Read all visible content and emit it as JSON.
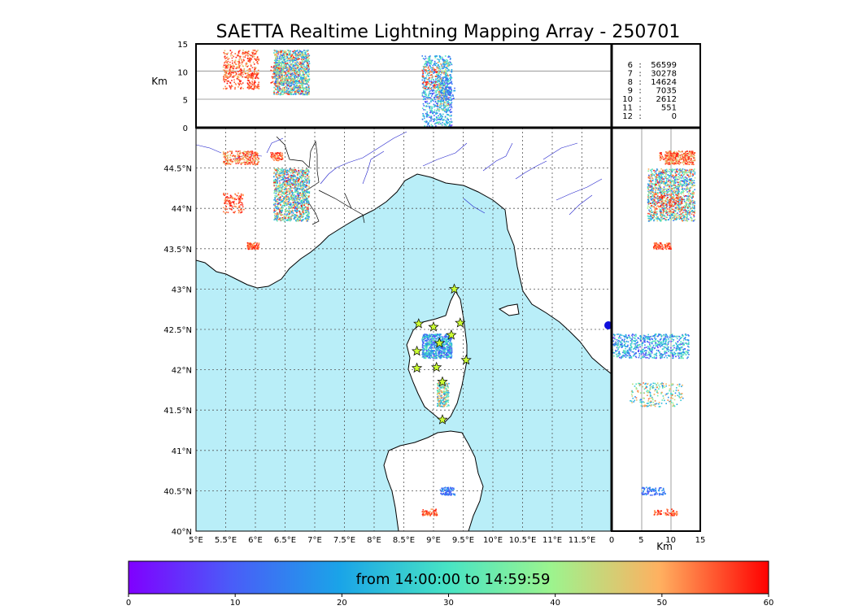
{
  "chart_data": {
    "type": "scatter",
    "title": "SAETTA Realtime Lightning Mapping Array - 250701",
    "map": {
      "lon_range": [
        5.0,
        12.0
      ],
      "lat_range": [
        40.0,
        45.0
      ],
      "lon_ticks": [
        "5°E",
        "5.5°E",
        "6°E",
        "6.5°E",
        "7°E",
        "7.5°E",
        "8°E",
        "8.5°E",
        "9°E",
        "9.5°E",
        "10°E",
        "10.5°E",
        "11°E",
        "11.5°E"
      ],
      "lat_ticks": [
        "40°N",
        "40.5°N",
        "41°N",
        "41.5°N",
        "42°N",
        "42.5°N",
        "43°N",
        "43.5°N",
        "44°N",
        "44.5°N"
      ],
      "grid": true,
      "sea_color": "#b9eef8",
      "land_color": "#ffffff",
      "coast_color": "#000000",
      "border_color": "#000000",
      "river_color": "#2222cc"
    },
    "altitude_axes": {
      "top_label": "Km",
      "side_label": "Km",
      "range": [
        0,
        15
      ],
      "ticks": [
        "0",
        "5",
        "10",
        "15"
      ],
      "reference_lines": [
        5,
        10
      ]
    },
    "stations": [
      [
        9.35,
        43.0
      ],
      [
        8.75,
        42.57
      ],
      [
        9.0,
        42.53
      ],
      [
        9.45,
        42.58
      ],
      [
        9.1,
        42.33
      ],
      [
        9.3,
        42.43
      ],
      [
        8.72,
        42.23
      ],
      [
        8.72,
        42.02
      ],
      [
        9.05,
        42.03
      ],
      [
        9.55,
        42.12
      ],
      [
        9.15,
        41.85
      ],
      [
        9.15,
        41.38
      ]
    ],
    "station_color": "#ccff33",
    "clusters": [
      {
        "lon": [
          5.45,
          6.05
        ],
        "lat": [
          44.55,
          44.72
        ],
        "alt": [
          9,
          14
        ],
        "time": [
          45,
          60
        ],
        "n": 260
      },
      {
        "lon": [
          6.25,
          6.45
        ],
        "lat": [
          44.6,
          44.7
        ],
        "alt": [
          8,
          11
        ],
        "time": [
          48,
          60
        ],
        "n": 70
      },
      {
        "lon": [
          6.3,
          6.9
        ],
        "lat": [
          43.85,
          44.5
        ],
        "alt": [
          6,
          14
        ],
        "time": [
          8,
          60
        ],
        "n": 1200
      },
      {
        "lon": [
          5.45,
          5.8
        ],
        "lat": [
          43.95,
          44.2
        ],
        "alt": [
          7,
          12
        ],
        "time": [
          50,
          60
        ],
        "n": 120
      },
      {
        "lon": [
          5.85,
          6.05
        ],
        "lat": [
          43.5,
          43.58
        ],
        "alt": [
          7,
          10
        ],
        "time": [
          50,
          60
        ],
        "n": 90
      },
      {
        "lon": [
          8.8,
          9.3
        ],
        "lat": [
          42.15,
          42.45
        ],
        "alt": [
          0,
          13
        ],
        "time": [
          5,
          35
        ],
        "n": 700
      },
      {
        "lon": [
          9.05,
          9.25
        ],
        "lat": [
          41.55,
          41.85
        ],
        "alt": [
          3,
          12
        ],
        "time": [
          15,
          55
        ],
        "n": 220
      },
      {
        "lon": [
          9.1,
          9.35
        ],
        "lat": [
          40.45,
          40.55
        ],
        "alt": [
          5,
          9
        ],
        "time": [
          8,
          20
        ],
        "n": 90
      },
      {
        "lon": [
          8.8,
          9.05
        ],
        "lat": [
          40.2,
          40.28
        ],
        "alt": [
          7,
          11
        ],
        "time": [
          50,
          60
        ],
        "n": 70
      }
    ],
    "counts": [
      {
        "label": "6",
        "value": "56599",
        "highlight": true
      },
      {
        "label": "7",
        "value": "30278",
        "highlight": false
      },
      {
        "label": "8",
        "value": "14624",
        "highlight": false
      },
      {
        "label": "9",
        "value": "7035",
        "highlight": false
      },
      {
        "label": "10",
        "value": "2612",
        "highlight": false
      },
      {
        "label": "11",
        "value": "551",
        "highlight": false
      },
      {
        "label": "12",
        "value": "0",
        "highlight": false
      }
    ],
    "colorbar": {
      "label": "from 14:00:00 to 14:59:59",
      "range": [
        0,
        60
      ],
      "ticks": [
        "0",
        "10",
        "20",
        "30",
        "40",
        "50",
        "60"
      ],
      "colormap": "rainbow"
    }
  }
}
